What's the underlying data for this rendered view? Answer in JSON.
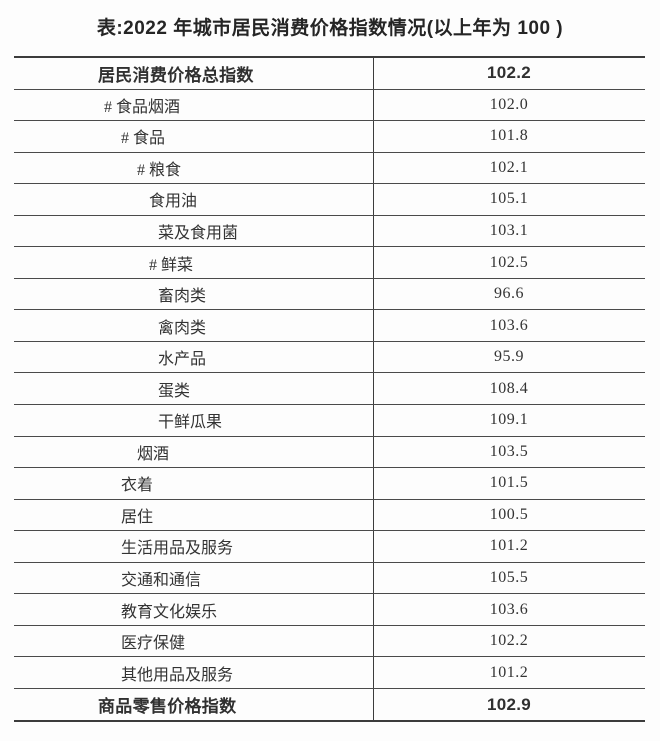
{
  "title": "表:2022 年城市居民消费价格指数情况(以上年为 100 )",
  "table": {
    "rows": [
      {
        "label": "居民消费价格总指数",
        "value": "102.2",
        "bold": true,
        "indent": 0
      },
      {
        "label": "# 食品烟酒",
        "value": "102.0",
        "bold": false,
        "indent": 1
      },
      {
        "label": "# 食品",
        "value": "101.8",
        "bold": false,
        "indent": 2
      },
      {
        "label": "# 粮食",
        "value": "102.1",
        "bold": false,
        "indent": 3
      },
      {
        "label": "食用油",
        "value": "105.1",
        "bold": false,
        "indent": 4
      },
      {
        "label": "菜及食用菌",
        "value": "103.1",
        "bold": false,
        "indent": 5
      },
      {
        "label": "# 鲜菜",
        "value": "102.5",
        "bold": false,
        "indent": 4
      },
      {
        "label": "畜肉类",
        "value": "96.6",
        "bold": false,
        "indent": 5
      },
      {
        "label": "禽肉类",
        "value": "103.6",
        "bold": false,
        "indent": 5
      },
      {
        "label": "水产品",
        "value": "95.9",
        "bold": false,
        "indent": 5
      },
      {
        "label": "蛋类",
        "value": "108.4",
        "bold": false,
        "indent": 5
      },
      {
        "label": "干鲜瓜果",
        "value": "109.1",
        "bold": false,
        "indent": 5
      },
      {
        "label": "烟酒",
        "value": "103.5",
        "bold": false,
        "indent": 3
      },
      {
        "label": "衣着",
        "value": "101.5",
        "bold": false,
        "indent": 2
      },
      {
        "label": "居住",
        "value": "100.5",
        "bold": false,
        "indent": 2
      },
      {
        "label": "生活用品及服务",
        "value": "101.2",
        "bold": false,
        "indent": 2
      },
      {
        "label": "交通和通信",
        "value": "105.5",
        "bold": false,
        "indent": 2
      },
      {
        "label": "教育文化娱乐",
        "value": "103.6",
        "bold": false,
        "indent": 2
      },
      {
        "label": "医疗保健",
        "value": "102.2",
        "bold": false,
        "indent": 2
      },
      {
        "label": "其他用品及服务",
        "value": "101.2",
        "bold": false,
        "indent": 2
      },
      {
        "label": "商品零售价格指数",
        "value": "102.9",
        "bold": true,
        "indent": 0
      }
    ]
  },
  "chart_data": {
    "type": "table",
    "title": "表:2022 年城市居民消费价格指数情况(以上年为 100 )",
    "categories": [
      "居民消费价格总指数",
      "# 食品烟酒",
      "# 食品",
      "# 粮食",
      "食用油",
      "菜及食用菌",
      "# 鲜菜",
      "畜肉类",
      "禽肉类",
      "水产品",
      "蛋类",
      "干鲜瓜果",
      "烟酒",
      "衣着",
      "居住",
      "生活用品及服务",
      "交通和通信",
      "教育文化娱乐",
      "医疗保健",
      "其他用品及服务",
      "商品零售价格指数"
    ],
    "values": [
      102.2,
      102.0,
      101.8,
      102.1,
      105.1,
      103.1,
      102.5,
      96.6,
      103.6,
      95.9,
      108.4,
      109.1,
      103.5,
      101.5,
      100.5,
      101.2,
      105.5,
      103.6,
      102.2,
      101.2,
      102.9
    ],
    "baseline_note": "以上年为 100",
    "layout_hints": {
      "two_columns": true,
      "summary_rows_bold": [
        0,
        20
      ]
    },
    "colors": {
      "text": "#333333",
      "border": "#3c3c3c",
      "background": "#fdfdfd"
    }
  }
}
